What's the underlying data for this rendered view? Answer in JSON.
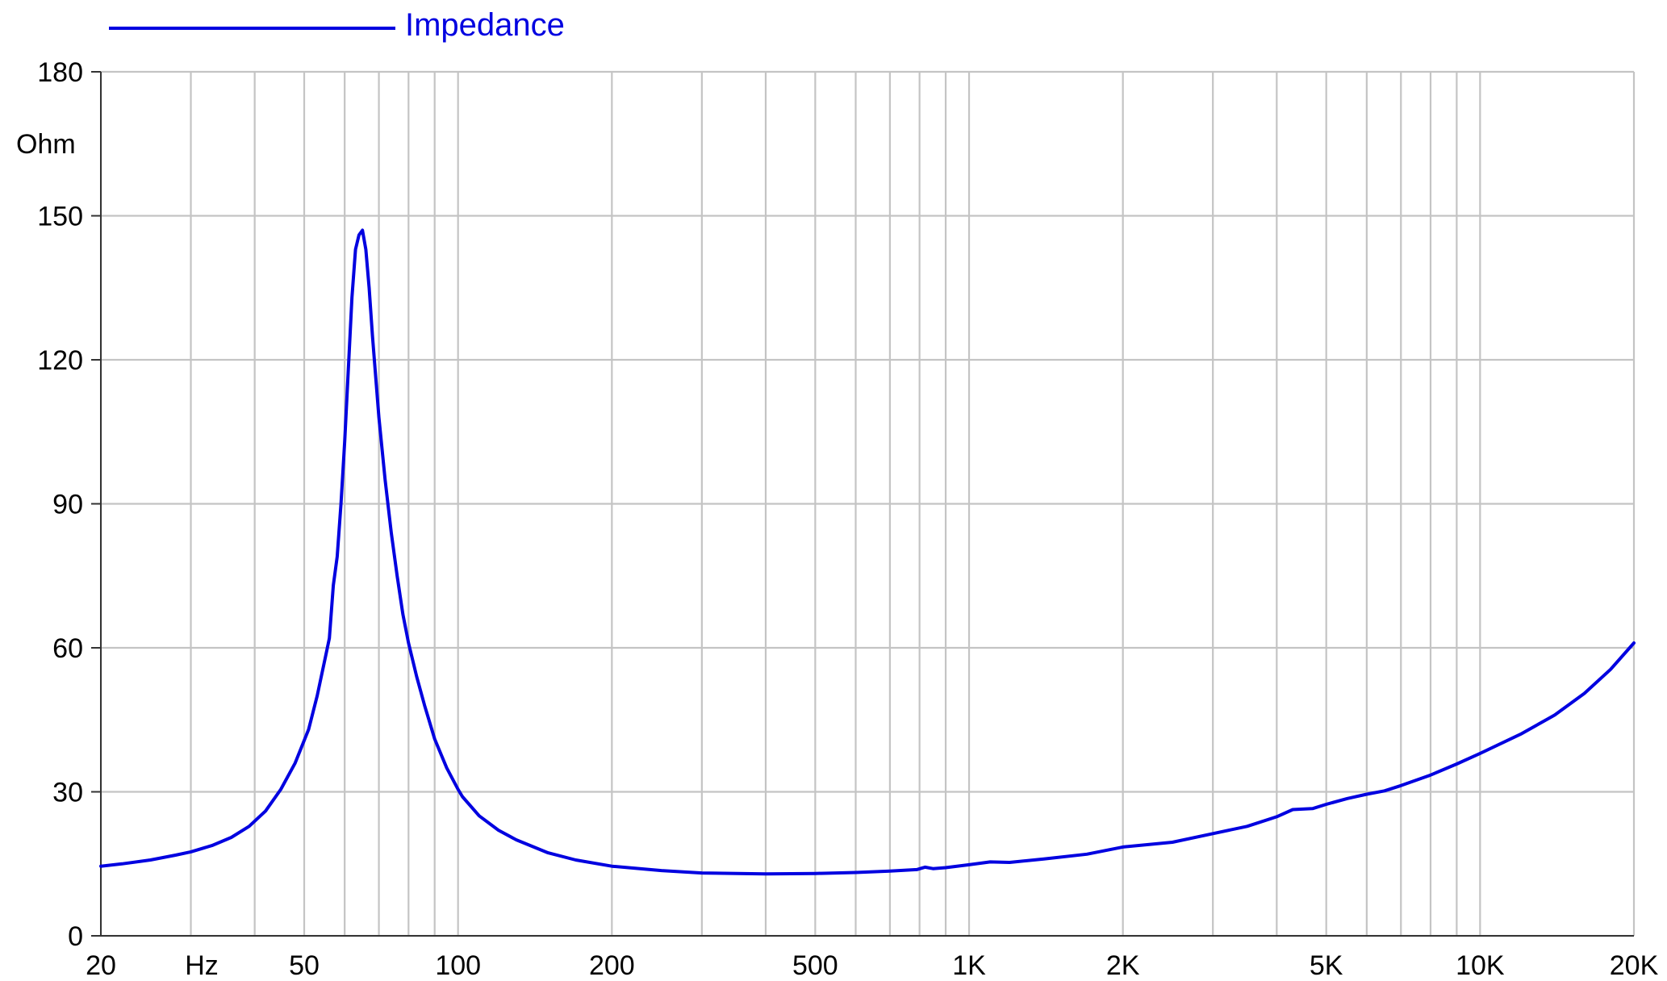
{
  "chart_data": {
    "type": "line",
    "title": "",
    "xlabel": "Hz",
    "ylabel": "Ohm",
    "x_scale": "log",
    "xlim": [
      20,
      20000
    ],
    "ylim": [
      0,
      180
    ],
    "grid": true,
    "legend_position": "top-left",
    "x_tick_labels": [
      {
        "value": 20,
        "label": "20"
      },
      {
        "value": 50,
        "label": "50"
      },
      {
        "value": 100,
        "label": "100"
      },
      {
        "value": 200,
        "label": "200"
      },
      {
        "value": 500,
        "label": "500"
      },
      {
        "value": 1000,
        "label": "1K"
      },
      {
        "value": 2000,
        "label": "2K"
      },
      {
        "value": 5000,
        "label": "5K"
      },
      {
        "value": 10000,
        "label": "10K"
      },
      {
        "value": 20000,
        "label": "20K"
      }
    ],
    "y_ticks": [
      0,
      30,
      60,
      90,
      120,
      150,
      180
    ],
    "x_gridlines": [
      20,
      30,
      40,
      50,
      60,
      70,
      80,
      90,
      100,
      200,
      300,
      400,
      500,
      600,
      700,
      800,
      900,
      1000,
      2000,
      3000,
      4000,
      5000,
      6000,
      7000,
      8000,
      9000,
      10000,
      20000
    ],
    "series": [
      {
        "name": "Impedance",
        "color": "#0000e0",
        "points": [
          [
            20,
            14.5
          ],
          [
            22,
            15.0
          ],
          [
            25,
            15.8
          ],
          [
            28,
            16.8
          ],
          [
            30,
            17.5
          ],
          [
            33,
            18.8
          ],
          [
            36,
            20.5
          ],
          [
            39,
            22.8
          ],
          [
            42,
            26.0
          ],
          [
            45,
            30.5
          ],
          [
            48,
            36.0
          ],
          [
            51,
            43.0
          ],
          [
            53,
            50.0
          ],
          [
            55,
            58.0
          ],
          [
            56,
            62.0
          ],
          [
            57,
            73.0
          ],
          [
            58,
            79.0
          ],
          [
            59,
            90.0
          ],
          [
            60,
            103.0
          ],
          [
            61,
            118.0
          ],
          [
            62,
            133.0
          ],
          [
            63,
            143.0
          ],
          [
            64,
            146.0
          ],
          [
            65,
            147.0
          ],
          [
            66,
            143.0
          ],
          [
            67,
            135.0
          ],
          [
            68,
            125.0
          ],
          [
            70,
            108.0
          ],
          [
            72,
            95.0
          ],
          [
            74,
            84.0
          ],
          [
            76,
            75.0
          ],
          [
            78,
            67.0
          ],
          [
            80,
            61.0
          ],
          [
            83,
            54.0
          ],
          [
            86,
            48.0
          ],
          [
            90,
            41.0
          ],
          [
            95,
            35.0
          ],
          [
            100,
            30.5
          ],
          [
            102,
            29.0
          ],
          [
            110,
            25.0
          ],
          [
            120,
            22.0
          ],
          [
            130,
            20.0
          ],
          [
            150,
            17.3
          ],
          [
            170,
            15.8
          ],
          [
            200,
            14.5
          ],
          [
            250,
            13.6
          ],
          [
            300,
            13.1
          ],
          [
            400,
            12.9
          ],
          [
            500,
            13.0
          ],
          [
            600,
            13.2
          ],
          [
            700,
            13.5
          ],
          [
            790,
            13.8
          ],
          [
            820,
            14.3
          ],
          [
            850,
            14.0
          ],
          [
            900,
            14.2
          ],
          [
            1000,
            14.8
          ],
          [
            1100,
            15.4
          ],
          [
            1200,
            15.3
          ],
          [
            1400,
            16.0
          ],
          [
            1700,
            17.0
          ],
          [
            2000,
            18.5
          ],
          [
            2500,
            19.5
          ],
          [
            3000,
            21.3
          ],
          [
            3500,
            22.8
          ],
          [
            4000,
            24.8
          ],
          [
            4300,
            26.3
          ],
          [
            4700,
            26.5
          ],
          [
            5000,
            27.4
          ],
          [
            5500,
            28.6
          ],
          [
            6000,
            29.5
          ],
          [
            6500,
            30.2
          ],
          [
            7000,
            31.3
          ],
          [
            8000,
            33.5
          ],
          [
            9000,
            35.8
          ],
          [
            10000,
            38.0
          ],
          [
            12000,
            42.0
          ],
          [
            14000,
            46.0
          ],
          [
            16000,
            50.5
          ],
          [
            18000,
            55.5
          ],
          [
            20000,
            61.0
          ]
        ]
      }
    ]
  }
}
